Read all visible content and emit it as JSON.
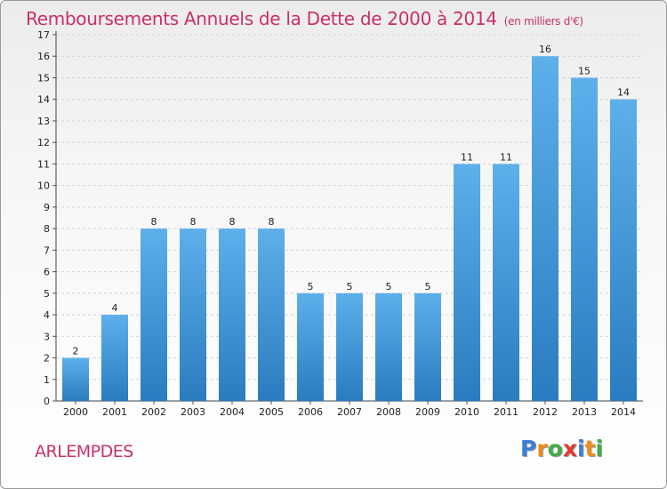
{
  "header": {
    "title": "Remboursements Annuels de la Dette de 2000 à 2014",
    "unit": "(en milliers d'€)"
  },
  "footer": {
    "commune": "ARLEMPDES",
    "logo": {
      "letters": [
        "P",
        "r",
        "o",
        "x",
        "i",
        "t",
        "i"
      ],
      "colors": [
        "#3b7fd4",
        "#f08a1c",
        "#3fae49",
        "#e23a2e",
        "#3b7fd4",
        "#f08a1c",
        "#3fae49"
      ]
    }
  },
  "colors": {
    "title": "#c8306a",
    "bar_top": "#5db0ea",
    "bar_bottom": "#2a7cc0"
  },
  "chart_data": {
    "type": "bar",
    "title": "Remboursements Annuels de la Dette de 2000 à 2014",
    "xlabel": "",
    "ylabel": "",
    "categories": [
      "2000",
      "2001",
      "2002",
      "2003",
      "2004",
      "2005",
      "2006",
      "2007",
      "2008",
      "2009",
      "2010",
      "2011",
      "2012",
      "2013",
      "2014"
    ],
    "values": [
      2,
      4,
      8,
      8,
      8,
      8,
      5,
      5,
      5,
      5,
      11,
      11,
      16,
      15,
      14
    ],
    "ylim": [
      0,
      17
    ],
    "yticks": [
      0,
      1,
      2,
      3,
      4,
      5,
      6,
      7,
      8,
      9,
      10,
      11,
      12,
      13,
      14,
      15,
      16,
      17
    ],
    "grid": true
  }
}
